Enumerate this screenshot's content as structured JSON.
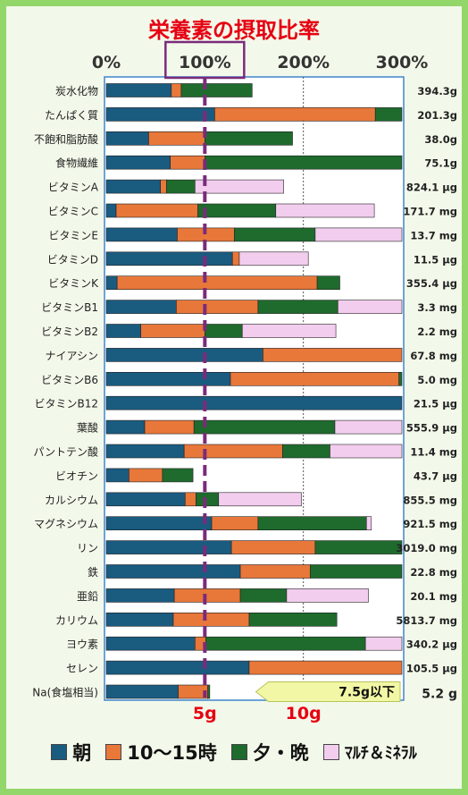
{
  "chart_data": {
    "type": "bar",
    "stacked": true,
    "orientation": "horizontal",
    "title": "栄養素の摂取比率",
    "xlim": [
      0,
      300
    ],
    "x_ticks": [
      "0%",
      "100%",
      "200%",
      "300%"
    ],
    "x_tick_values": [
      0,
      100,
      200,
      300
    ],
    "reference_line": 100,
    "highlighted_tick": "100%",
    "bottom_labels": [
      {
        "label": "5g",
        "value": 100
      },
      {
        "label": "10g",
        "value": 200
      }
    ],
    "series": [
      {
        "name": "朝",
        "color": "#1a5b80"
      },
      {
        "name": "10～15時",
        "color": "#e8773a"
      },
      {
        "name": "夕・晩",
        "color": "#1e6b2d"
      },
      {
        "name": "ﾏﾙﾁ＆ﾐﾈﾗﾙ",
        "color": "#f2cdee"
      }
    ],
    "categories": [
      {
        "name": "炭水化物",
        "values": [
          66,
          10,
          72,
          0
        ],
        "amount": "394.3g"
      },
      {
        "name": "たんぱく質",
        "values": [
          110,
          163,
          27,
          0
        ],
        "amount": "201.3g"
      },
      {
        "name": "不飽和脂肪酸",
        "values": [
          43,
          57,
          89,
          0
        ],
        "amount": "38.0g"
      },
      {
        "name": "食物繊維",
        "values": [
          65,
          35,
          200,
          0
        ],
        "amount": "75.1g"
      },
      {
        "name": "ビタミンA",
        "values": [
          55,
          6,
          29,
          90
        ],
        "amount": "824.1 μg"
      },
      {
        "name": "ビタミンC",
        "values": [
          10,
          83,
          79,
          100
        ],
        "amount": "171.7 mg"
      },
      {
        "name": "ビタミンE",
        "values": [
          72,
          58,
          82,
          88
        ],
        "amount": "13.7 mg"
      },
      {
        "name": "ビタミンD",
        "values": [
          128,
          7,
          0,
          70
        ],
        "amount": "11.5 μg"
      },
      {
        "name": "ビタミンK",
        "values": [
          11,
          203,
          23,
          0
        ],
        "amount": "355.4 μg"
      },
      {
        "name": "ビタミンB1",
        "values": [
          71,
          83,
          81,
          65
        ],
        "amount": "3.3 mg"
      },
      {
        "name": "ビタミンB2",
        "values": [
          35,
          65,
          38,
          95
        ],
        "amount": "2.2 mg"
      },
      {
        "name": "ナイアシン",
        "values": [
          159,
          141,
          0,
          0
        ],
        "amount": "67.8 mg"
      },
      {
        "name": "ビタミンB6",
        "values": [
          126,
          171,
          3,
          0
        ],
        "amount": "5.0 mg"
      },
      {
        "name": "ビタミンB12",
        "values": [
          300,
          0,
          0,
          0
        ],
        "amount": "21.5 μg"
      },
      {
        "name": "葉酸",
        "values": [
          39,
          50,
          143,
          68
        ],
        "amount": "555.9 μg"
      },
      {
        "name": "パントテン酸",
        "values": [
          79,
          100,
          48,
          73
        ],
        "amount": "11.4 mg"
      },
      {
        "name": "ビオチン",
        "values": [
          23,
          34,
          31,
          0
        ],
        "amount": "43.7 μg"
      },
      {
        "name": "カルシウム",
        "values": [
          80,
          11,
          23,
          84
        ],
        "amount": "855.5 mg"
      },
      {
        "name": "マグネシウム",
        "values": [
          107,
          47,
          110,
          5
        ],
        "amount": "921.5 mg"
      },
      {
        "name": "リン",
        "values": [
          127,
          85,
          88,
          0
        ],
        "amount": "3019.0 mg"
      },
      {
        "name": "鉄",
        "values": [
          136,
          71,
          93,
          0
        ],
        "amount": "22.8 mg"
      },
      {
        "name": "亜鉛",
        "values": [
          69,
          67,
          47,
          83
        ],
        "amount": "20.1 mg"
      },
      {
        "name": "カリウム",
        "values": [
          68,
          77,
          89,
          0
        ],
        "amount": "5813.7 mg"
      },
      {
        "name": "ヨウ素",
        "values": [
          90,
          11,
          162,
          37
        ],
        "amount": "340.2 μg"
      },
      {
        "name": "セレン",
        "values": [
          145,
          155,
          0,
          0
        ],
        "amount": "105.5 μg"
      },
      {
        "name": "Na(食塩相当)",
        "values": [
          73,
          30,
          2,
          0
        ],
        "amount": "5.2 g"
      }
    ],
    "annotation": {
      "text": "7.5g以下",
      "value": 150
    }
  }
}
